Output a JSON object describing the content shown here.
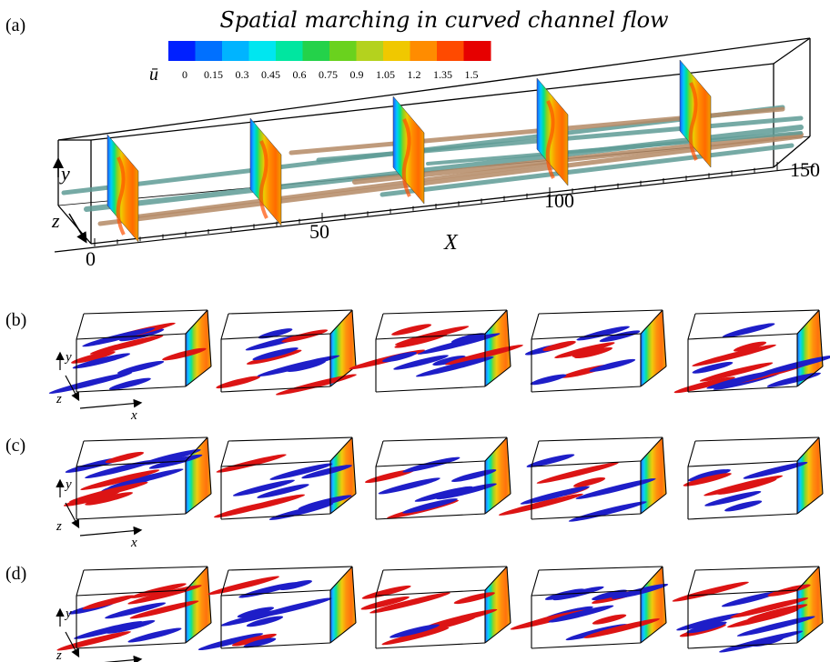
{
  "title": "Spatial marching in curved channel flow",
  "panel_labels": [
    "(a)",
    "(b)",
    "(c)",
    "(d)"
  ],
  "colorbar": {
    "variable": "ū",
    "tick_labels": [
      "0",
      "0.15",
      "0.3",
      "0.45",
      "0.6",
      "0.75",
      "0.9",
      "1.05",
      "1.2",
      "1.35",
      "1.5"
    ],
    "colors": [
      "#0020ff",
      "#0070ff",
      "#00b4ff",
      "#00e6f0",
      "#00e6a0",
      "#24d24a",
      "#6ad21e",
      "#b4d21e",
      "#f0c800",
      "#ff8c00",
      "#ff4a00",
      "#e60000"
    ]
  },
  "main_axes": {
    "x_title": "X",
    "x_ticks": [
      "0",
      "50",
      "100",
      "150"
    ],
    "y_title": "y",
    "z_title": "z"
  },
  "small_axes": {
    "x": "x",
    "y": "y",
    "z": "z"
  },
  "streak_colors": {
    "high": "#b58a66",
    "low": "#5f9c96"
  },
  "isosurface_colors": {
    "positive": "#dc1414",
    "negative": "#1e1ec8"
  }
}
